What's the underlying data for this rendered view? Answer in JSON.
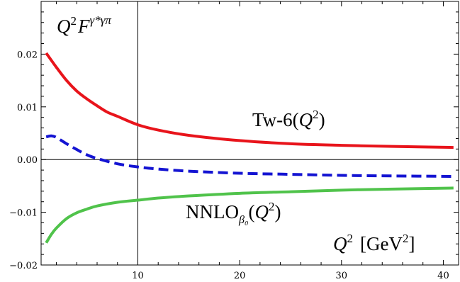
{
  "chart_data": {
    "type": "line",
    "x_range": [
      0.5,
      41.5
    ],
    "ylim": [
      -0.02,
      0.03
    ],
    "x_ticks": [
      10,
      20,
      30,
      40
    ],
    "y_ticks": [
      -0.02,
      -0.01,
      0.0,
      0.01,
      0.02
    ],
    "x_tick_labels": [
      "10",
      "20",
      "30",
      "40"
    ],
    "y_tick_labels": [
      "−0.02",
      "−0.01",
      "0.00",
      "0.01",
      "0.02"
    ],
    "ylabel": {
      "base": "Q",
      "sup1": "2",
      "main": "F",
      "sup2": "γ*γπ"
    },
    "xlabel": {
      "base": "Q",
      "sup": "2",
      "unit": "[GeV",
      "unit_sup": "2",
      "unit_close": "]"
    },
    "grid": false,
    "series": [
      {
        "name": "Tw-6(Q²)",
        "label_main": "Tw-6(",
        "label_var": "Q",
        "label_sup": "2",
        "label_close": ")",
        "color": "#e8141b",
        "style": "solid",
        "x": [
          1,
          2,
          3,
          4,
          5,
          6,
          7,
          8,
          10,
          12,
          15,
          20,
          25,
          30,
          35,
          41
        ],
        "y": [
          0.0202,
          0.0175,
          0.015,
          0.013,
          0.0115,
          0.0102,
          0.009,
          0.0082,
          0.0066,
          0.0056,
          0.0046,
          0.0036,
          0.003,
          0.0027,
          0.0025,
          0.0023
        ]
      },
      {
        "name": "",
        "color": "#1414d2",
        "style": "dashed",
        "x": [
          1,
          1.5,
          2,
          3,
          4,
          5,
          6,
          8,
          10,
          12,
          15,
          20,
          25,
          30,
          35,
          41
        ],
        "y": [
          0.0043,
          0.0045,
          0.0042,
          0.003,
          0.0019,
          0.0009,
          0.0002,
          -0.0008,
          -0.0014,
          -0.0018,
          -0.0022,
          -0.0026,
          -0.0028,
          -0.003,
          -0.0031,
          -0.0032
        ]
      },
      {
        "name": "NNLOβ₀(Q²)",
        "label_main": "NNLO",
        "label_sub": "β₀",
        "label_var": "Q",
        "label_sup": "2",
        "label_close": ")",
        "color": "#50c34b",
        "style": "solid",
        "x": [
          1,
          1.5,
          2,
          3,
          4,
          5,
          6,
          8,
          10,
          12,
          15,
          20,
          25,
          30,
          35,
          41
        ],
        "y": [
          -0.0158,
          -0.0142,
          -0.013,
          -0.0112,
          -0.0101,
          -0.0094,
          -0.0088,
          -0.0081,
          -0.0077,
          -0.0073,
          -0.0069,
          -0.0064,
          -0.0061,
          -0.0058,
          -0.0056,
          -0.0054
        ]
      }
    ]
  }
}
